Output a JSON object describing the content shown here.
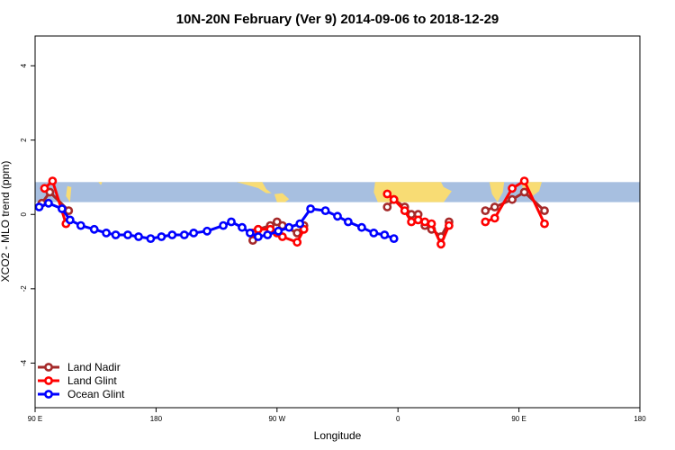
{
  "chart_data": {
    "type": "line",
    "title": "10N-20N February (Ver 9)   2014-09-06 to 2018-12-29",
    "xlabel": "Longitude",
    "ylabel": "XCO2 - MLO trend (ppm)",
    "xlim": [
      90,
      450
    ],
    "ylim": [
      -5.2,
      4.8
    ],
    "x_ticks": [
      {
        "value": 90,
        "label": "90 E"
      },
      {
        "value": 180,
        "label": "180"
      },
      {
        "value": 270,
        "label": "90 W"
      },
      {
        "value": 360,
        "label": "0"
      },
      {
        "value": 450,
        "label": "90 E"
      },
      {
        "value": 540,
        "label": "180"
      }
    ],
    "y_ticks": [
      {
        "value": -4,
        "label": "-4"
      },
      {
        "value": -2,
        "label": "-2"
      },
      {
        "value": 0,
        "label": "0"
      },
      {
        "value": 2,
        "label": "2"
      },
      {
        "value": 4,
        "label": "4"
      }
    ],
    "map_strip": {
      "ocean_color": "#a7bfe0",
      "land_color": "#f8dc74",
      "y_top": 0.87,
      "y_bottom": 0.33
    },
    "series": [
      {
        "name": "Land Nadir",
        "color": "#a52a2a",
        "segments": [
          [
            [
              95,
              0.3
            ],
            [
              101,
              0.6
            ],
            [
              115,
              0.1
            ]
          ],
          [
            [
              252,
              -0.7
            ],
            [
              256,
              -0.4
            ],
            [
              265,
              -0.3
            ],
            [
              270,
              -0.2
            ],
            [
              274,
              -0.3
            ],
            [
              285,
              -0.5
            ],
            [
              290,
              -0.3
            ]
          ],
          [
            [
              352,
              0.2
            ],
            [
              357,
              0.4
            ],
            [
              365,
              0.2
            ],
            [
              370,
              0.0
            ],
            [
              375,
              0.0
            ],
            [
              380,
              -0.3
            ],
            [
              385,
              -0.4
            ],
            [
              392,
              -0.6
            ],
            [
              398,
              -0.2
            ]
          ],
          [
            [
              425,
              0.1
            ],
            [
              432,
              0.2
            ],
            [
              445,
              0.4
            ],
            [
              454,
              0.6
            ],
            [
              469,
              0.1
            ]
          ]
        ]
      },
      {
        "name": "Land Glint",
        "color": "#ff0000",
        "segments": [
          [
            [
              97,
              0.7
            ],
            [
              103,
              0.9
            ],
            [
              113,
              -0.25
            ]
          ],
          [
            [
              252,
              -0.5
            ],
            [
              256,
              -0.4
            ],
            [
              265,
              -0.4
            ],
            [
              270,
              -0.5
            ],
            [
              274,
              -0.6
            ],
            [
              285,
              -0.75
            ],
            [
              290,
              -0.4
            ]
          ],
          [
            [
              352,
              0.55
            ],
            [
              357,
              0.4
            ],
            [
              365,
              0.1
            ],
            [
              370,
              -0.2
            ],
            [
              375,
              -0.15
            ],
            [
              380,
              -0.2
            ],
            [
              385,
              -0.25
            ],
            [
              392,
              -0.8
            ],
            [
              398,
              -0.3
            ]
          ],
          [
            [
              425,
              -0.2
            ],
            [
              432,
              -0.1
            ],
            [
              445,
              0.7
            ],
            [
              454,
              0.9
            ],
            [
              469,
              -0.25
            ]
          ]
        ]
      },
      {
        "name": "Ocean Glint",
        "color": "#0000ff",
        "segments": [
          [
            [
              93,
              0.2
            ],
            [
              100,
              0.3
            ],
            [
              110,
              0.15
            ],
            [
              116,
              -0.15
            ],
            [
              124,
              -0.3
            ],
            [
              134,
              -0.4
            ],
            [
              143,
              -0.5
            ],
            [
              150,
              -0.55
            ],
            [
              159,
              -0.55
            ],
            [
              167,
              -0.6
            ],
            [
              176,
              -0.65
            ],
            [
              184,
              -0.6
            ],
            [
              192,
              -0.55
            ],
            [
              201,
              -0.55
            ],
            [
              208,
              -0.5
            ],
            [
              218,
              -0.45
            ],
            [
              230,
              -0.3
            ],
            [
              236,
              -0.2
            ],
            [
              244,
              -0.35
            ],
            [
              250,
              -0.5
            ],
            [
              256,
              -0.6
            ],
            [
              263,
              -0.55
            ],
            [
              271,
              -0.45
            ],
            [
              279,
              -0.35
            ],
            [
              287,
              -0.25
            ],
            [
              295,
              0.15
            ],
            [
              306,
              0.1
            ],
            [
              315,
              -0.05
            ],
            [
              323,
              -0.2
            ],
            [
              333,
              -0.35
            ],
            [
              342,
              -0.5
            ],
            [
              350,
              -0.55
            ],
            [
              357,
              -0.65
            ]
          ]
        ]
      }
    ],
    "legend": {
      "position": "bottom-left",
      "entries": [
        "Land Nadir",
        "Land Glint",
        "Ocean Glint"
      ]
    }
  }
}
